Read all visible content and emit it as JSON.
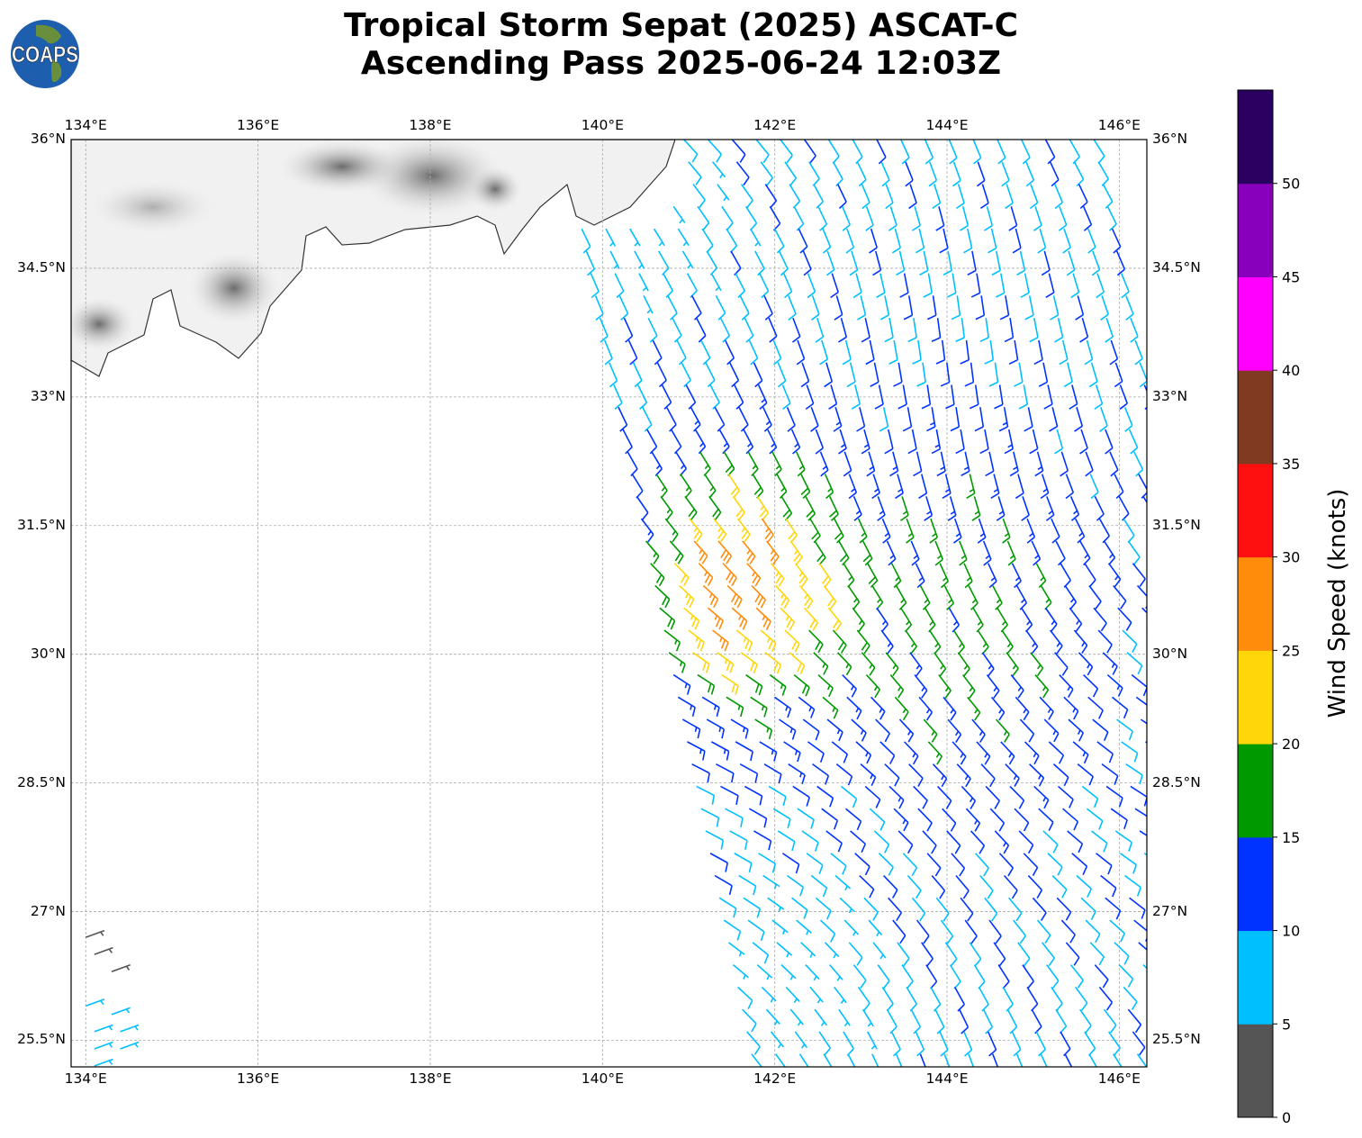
{
  "title": {
    "line1": "Tropical Storm Sepat (2025) ASCAT-C",
    "line2": "Ascending Pass 2025-06-24 12:03Z"
  },
  "logo": {
    "text": "COAPS"
  },
  "map": {
    "lon_ticks": [
      "134°E",
      "136°E",
      "138°E",
      "140°E",
      "142°E",
      "144°E",
      "146°E"
    ],
    "lon_values": [
      134,
      136,
      138,
      140,
      142,
      144,
      146
    ],
    "lat_ticks": [
      "36°N",
      "34.5°N",
      "33°N",
      "31.5°N",
      "30°N",
      "28.5°N",
      "27°N",
      "25.5°N"
    ],
    "lat_values": [
      36,
      34.5,
      33,
      31.5,
      30,
      28.5,
      27,
      25.5
    ],
    "lon_range": [
      133.83,
      146.32
    ],
    "lat_range": [
      25.19,
      36.0
    ]
  },
  "colorbar": {
    "label": "Wind Speed (knots)",
    "ticks": [
      "0",
      "5",
      "10",
      "15",
      "20",
      "25",
      "30",
      "35",
      "40",
      "45",
      "50"
    ],
    "range": [
      0,
      55
    ],
    "colors": [
      "#555555",
      "#00bfff",
      "#0033ff",
      "#009900",
      "#ffd60a",
      "#ff8c0a",
      "#ff1010",
      "#803a22",
      "#ff00ff",
      "#8800bb",
      "#2a0060"
    ]
  }
}
